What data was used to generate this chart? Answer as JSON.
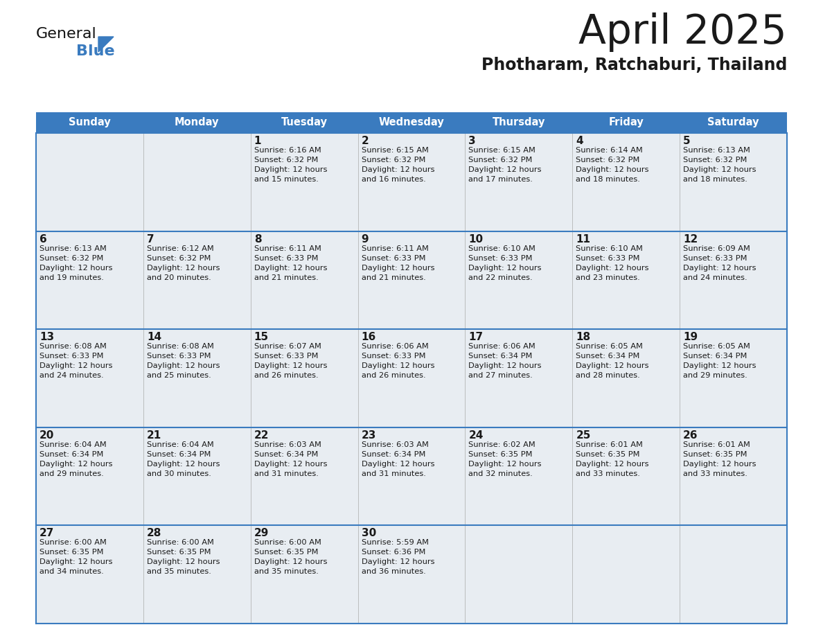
{
  "title": "April 2025",
  "subtitle": "Photharam, Ratchaburi, Thailand",
  "header_bg_color": "#3a7bbf",
  "header_text_color": "#ffffff",
  "cell_bg_color": "#e8edf2",
  "cell_bg_color_white": "#ffffff",
  "border_color": "#3a7bbf",
  "divider_color": "#cccccc",
  "day_of_week": [
    "Sunday",
    "Monday",
    "Tuesday",
    "Wednesday",
    "Thursday",
    "Friday",
    "Saturday"
  ],
  "title_color": "#1a1a1a",
  "subtitle_color": "#1a1a1a",
  "cell_text_color": "#1a1a1a",
  "day_num_color": "#1a1a1a",
  "logo_general_color": "#1a1a1a",
  "logo_blue_color": "#3a7bbf",
  "logo_triangle_color": "#3a7bbf",
  "weeks": [
    [
      {
        "day": "",
        "sunrise": "",
        "sunset": "",
        "daylight": ""
      },
      {
        "day": "",
        "sunrise": "",
        "sunset": "",
        "daylight": ""
      },
      {
        "day": "1",
        "sunrise": "6:16 AM",
        "sunset": "6:32 PM",
        "daylight": "12 hours and 15 minutes."
      },
      {
        "day": "2",
        "sunrise": "6:15 AM",
        "sunset": "6:32 PM",
        "daylight": "12 hours and 16 minutes."
      },
      {
        "day": "3",
        "sunrise": "6:15 AM",
        "sunset": "6:32 PM",
        "daylight": "12 hours and 17 minutes."
      },
      {
        "day": "4",
        "sunrise": "6:14 AM",
        "sunset": "6:32 PM",
        "daylight": "12 hours and 18 minutes."
      },
      {
        "day": "5",
        "sunrise": "6:13 AM",
        "sunset": "6:32 PM",
        "daylight": "12 hours and 18 minutes."
      }
    ],
    [
      {
        "day": "6",
        "sunrise": "6:13 AM",
        "sunset": "6:32 PM",
        "daylight": "12 hours and 19 minutes."
      },
      {
        "day": "7",
        "sunrise": "6:12 AM",
        "sunset": "6:32 PM",
        "daylight": "12 hours and 20 minutes."
      },
      {
        "day": "8",
        "sunrise": "6:11 AM",
        "sunset": "6:33 PM",
        "daylight": "12 hours and 21 minutes."
      },
      {
        "day": "9",
        "sunrise": "6:11 AM",
        "sunset": "6:33 PM",
        "daylight": "12 hours and 21 minutes."
      },
      {
        "day": "10",
        "sunrise": "6:10 AM",
        "sunset": "6:33 PM",
        "daylight": "12 hours and 22 minutes."
      },
      {
        "day": "11",
        "sunrise": "6:10 AM",
        "sunset": "6:33 PM",
        "daylight": "12 hours and 23 minutes."
      },
      {
        "day": "12",
        "sunrise": "6:09 AM",
        "sunset": "6:33 PM",
        "daylight": "12 hours and 24 minutes."
      }
    ],
    [
      {
        "day": "13",
        "sunrise": "6:08 AM",
        "sunset": "6:33 PM",
        "daylight": "12 hours and 24 minutes."
      },
      {
        "day": "14",
        "sunrise": "6:08 AM",
        "sunset": "6:33 PM",
        "daylight": "12 hours and 25 minutes."
      },
      {
        "day": "15",
        "sunrise": "6:07 AM",
        "sunset": "6:33 PM",
        "daylight": "12 hours and 26 minutes."
      },
      {
        "day": "16",
        "sunrise": "6:06 AM",
        "sunset": "6:33 PM",
        "daylight": "12 hours and 26 minutes."
      },
      {
        "day": "17",
        "sunrise": "6:06 AM",
        "sunset": "6:34 PM",
        "daylight": "12 hours and 27 minutes."
      },
      {
        "day": "18",
        "sunrise": "6:05 AM",
        "sunset": "6:34 PM",
        "daylight": "12 hours and 28 minutes."
      },
      {
        "day": "19",
        "sunrise": "6:05 AM",
        "sunset": "6:34 PM",
        "daylight": "12 hours and 29 minutes."
      }
    ],
    [
      {
        "day": "20",
        "sunrise": "6:04 AM",
        "sunset": "6:34 PM",
        "daylight": "12 hours and 29 minutes."
      },
      {
        "day": "21",
        "sunrise": "6:04 AM",
        "sunset": "6:34 PM",
        "daylight": "12 hours and 30 minutes."
      },
      {
        "day": "22",
        "sunrise": "6:03 AM",
        "sunset": "6:34 PM",
        "daylight": "12 hours and 31 minutes."
      },
      {
        "day": "23",
        "sunrise": "6:03 AM",
        "sunset": "6:34 PM",
        "daylight": "12 hours and 31 minutes."
      },
      {
        "day": "24",
        "sunrise": "6:02 AM",
        "sunset": "6:35 PM",
        "daylight": "12 hours and 32 minutes."
      },
      {
        "day": "25",
        "sunrise": "6:01 AM",
        "sunset": "6:35 PM",
        "daylight": "12 hours and 33 minutes."
      },
      {
        "day": "26",
        "sunrise": "6:01 AM",
        "sunset": "6:35 PM",
        "daylight": "12 hours and 33 minutes."
      }
    ],
    [
      {
        "day": "27",
        "sunrise": "6:00 AM",
        "sunset": "6:35 PM",
        "daylight": "12 hours and 34 minutes."
      },
      {
        "day": "28",
        "sunrise": "6:00 AM",
        "sunset": "6:35 PM",
        "daylight": "12 hours and 35 minutes."
      },
      {
        "day": "29",
        "sunrise": "6:00 AM",
        "sunset": "6:35 PM",
        "daylight": "12 hours and 35 minutes."
      },
      {
        "day": "30",
        "sunrise": "5:59 AM",
        "sunset": "6:36 PM",
        "daylight": "12 hours and 36 minutes."
      },
      {
        "day": "",
        "sunrise": "",
        "sunset": "",
        "daylight": ""
      },
      {
        "day": "",
        "sunrise": "",
        "sunset": "",
        "daylight": ""
      },
      {
        "day": "",
        "sunrise": "",
        "sunset": "",
        "daylight": ""
      }
    ]
  ]
}
